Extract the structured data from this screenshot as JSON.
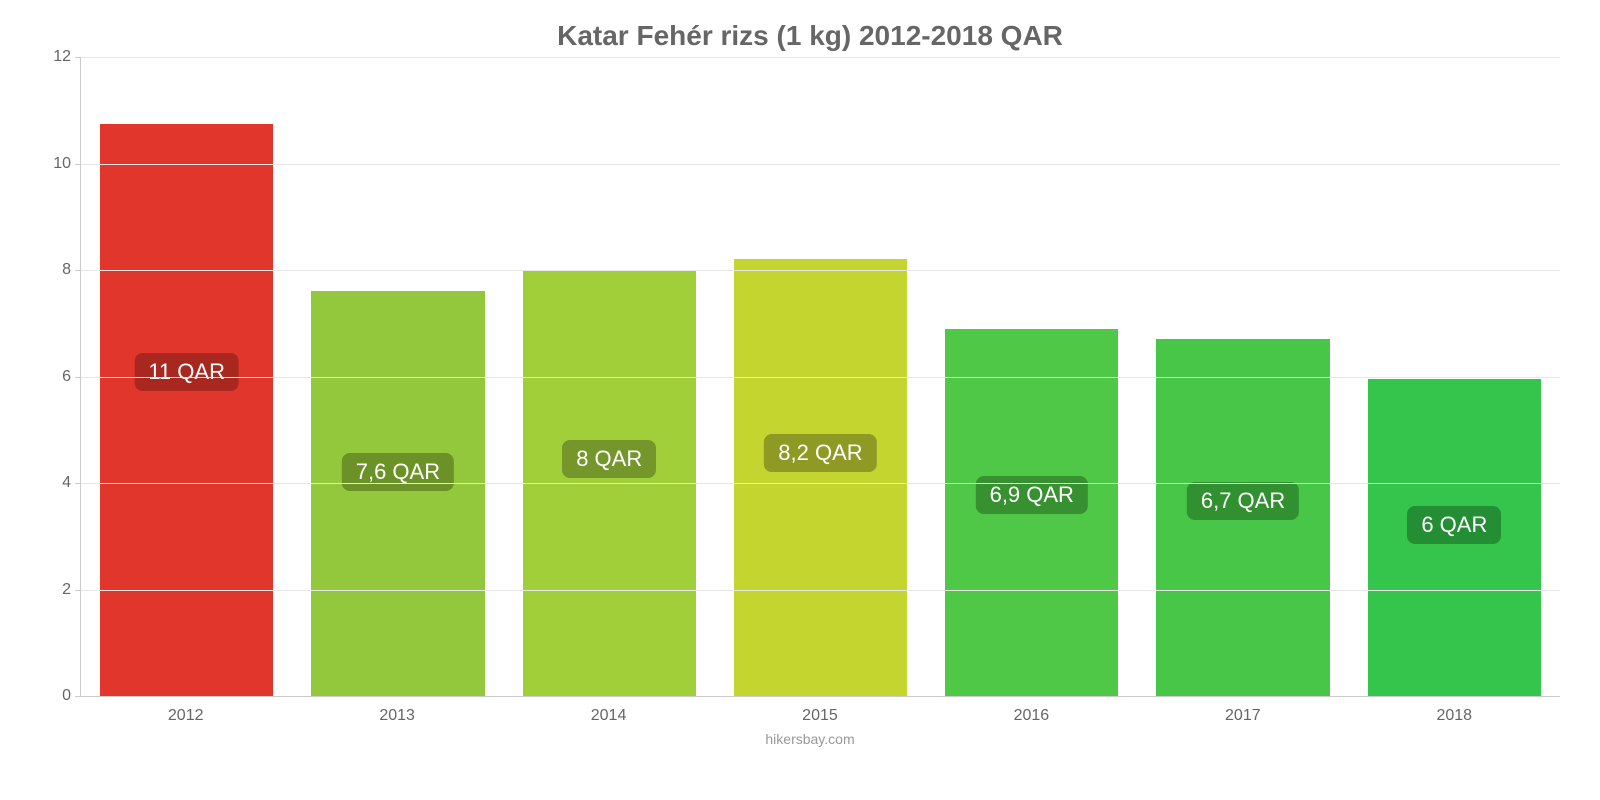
{
  "chart": {
    "type": "bar",
    "title": "Katar Fehér rizs (1 kg) 2012-2018 QAR",
    "title_color": "#666666",
    "title_fontsize": 28,
    "attribution": "hikersbay.com",
    "attribution_color": "#999999",
    "background_color": "#ffffff",
    "grid_color": "#e6e6e6",
    "axis_color": "#cccccc",
    "tick_label_color": "#666666",
    "tick_fontsize": 16,
    "bar_label_fontsize": 22,
    "bar_label_text_color": "#ffffff",
    "bar_width_ratio": 0.82,
    "ylim": [
      0,
      12
    ],
    "ytick_step": 2,
    "yticks": [
      {
        "value": 0,
        "label": "0"
      },
      {
        "value": 2,
        "label": "2"
      },
      {
        "value": 4,
        "label": "4"
      },
      {
        "value": 6,
        "label": "6"
      },
      {
        "value": 8,
        "label": "8"
      },
      {
        "value": 10,
        "label": "10"
      },
      {
        "value": 12,
        "label": "12"
      }
    ],
    "categories": [
      "2012",
      "2013",
      "2014",
      "2015",
      "2016",
      "2017",
      "2018"
    ],
    "bars": [
      {
        "category": "2012",
        "value": 10.75,
        "label": "11 QAR",
        "bar_color": "#e1362c",
        "label_bg": "#a82820"
      },
      {
        "category": "2013",
        "value": 7.6,
        "label": "7,6 QAR",
        "bar_color": "#93c83d",
        "label_bg": "#6b9226"
      },
      {
        "category": "2014",
        "value": 8.0,
        "label": "8 QAR",
        "bar_color": "#a0cf3a",
        "label_bg": "#74962a"
      },
      {
        "category": "2015",
        "value": 8.2,
        "label": "8,2 QAR",
        "bar_color": "#c3d52e",
        "label_bg": "#8e9a24"
      },
      {
        "category": "2016",
        "value": 6.9,
        "label": "6,9 QAR",
        "bar_color": "#50c847",
        "label_bg": "#379130"
      },
      {
        "category": "2017",
        "value": 6.7,
        "label": "6,7 QAR",
        "bar_color": "#47c647",
        "label_bg": "#319030"
      },
      {
        "category": "2018",
        "value": 5.95,
        "label": "6 QAR",
        "bar_color": "#35c44c",
        "label_bg": "#238e34"
      }
    ],
    "bar_label_vertical_offset_pct": 40
  }
}
